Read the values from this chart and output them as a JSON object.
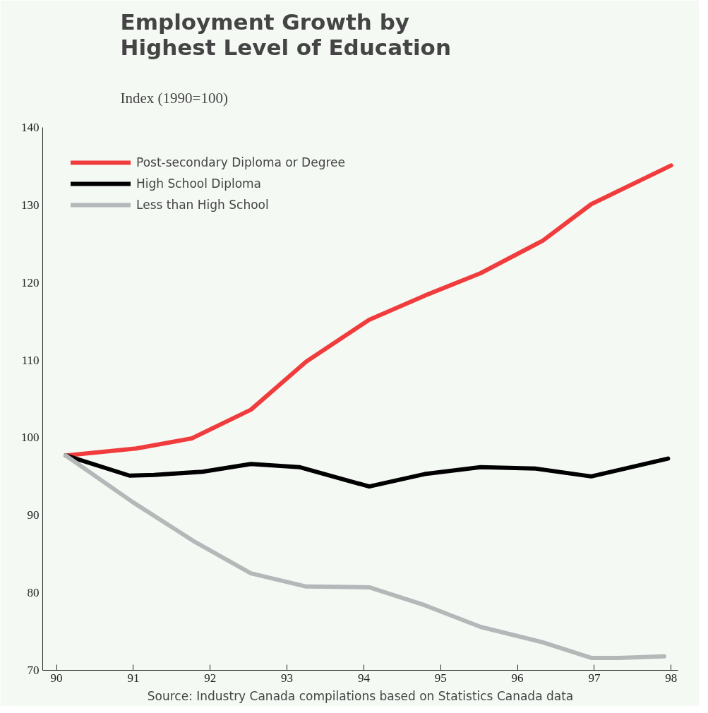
{
  "chart_data": {
    "type": "line",
    "title": "Employment Growth by\nHighest Level of Education",
    "subtitle": "Index (1990=100)",
    "annotations": [
      "Source: Industry Canada compilations based on Statistics Canada data"
    ],
    "xlim": [
      89.82,
      98.09
    ],
    "ylim": [
      70,
      140
    ],
    "xticks": [
      {
        "value": 90,
        "label": "90"
      },
      {
        "value": 91,
        "label": "91"
      },
      {
        "value": 92,
        "label": "92"
      },
      {
        "value": 93,
        "label": "93"
      },
      {
        "value": 94,
        "label": "94"
      },
      {
        "value": 95,
        "label": "95"
      },
      {
        "value": 96,
        "label": "96"
      },
      {
        "value": 97,
        "label": "97"
      },
      {
        "value": 98,
        "label": "98"
      }
    ],
    "yticks": [
      70,
      80,
      90,
      100,
      110,
      120,
      130,
      140
    ],
    "grid": false,
    "legend": "top left",
    "marker": "none",
    "line_style": "solid",
    "series": [
      {
        "name": "Post-secondary Diploma or Degree",
        "color": "#f03c3c",
        "x": [
          90.12,
          91.04,
          91.76,
          92.53,
          93.25,
          94.07,
          94.79,
          95.52,
          96.33,
          96.96,
          98.0
        ],
        "values": [
          97.7,
          98.6,
          99.9,
          103.6,
          109.8,
          115.2,
          118.3,
          121.2,
          125.4,
          130.1,
          135.1
        ]
      },
      {
        "name": "High School Diploma",
        "color": "#000000",
        "x": [
          90.12,
          90.95,
          91.27,
          91.9,
          92.53,
          93.16,
          94.07,
          94.79,
          95.52,
          96.24,
          96.96,
          97.96
        ],
        "values": [
          97.7,
          95.1,
          95.2,
          95.6,
          96.6,
          96.2,
          93.7,
          95.3,
          96.2,
          96.0,
          95.0,
          97.3
        ]
      },
      {
        "name": "Less than High School",
        "color": "#b4b8b8",
        "x": [
          90.12,
          90.99,
          91.81,
          92.53,
          93.25,
          94.07,
          94.79,
          95.52,
          96.33,
          96.96,
          97.32,
          97.91
        ],
        "values": [
          97.7,
          91.7,
          86.5,
          82.5,
          80.8,
          80.7,
          78.4,
          75.6,
          73.6,
          71.6,
          71.6,
          71.8
        ]
      }
    ]
  }
}
